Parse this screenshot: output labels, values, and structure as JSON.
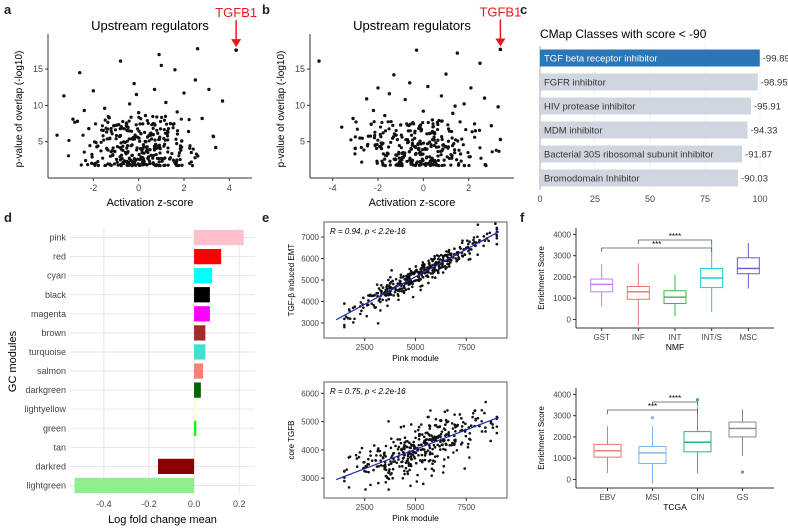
{
  "panel_letters": {
    "a": "a",
    "b": "b",
    "c": "c",
    "d": "d",
    "e": "e",
    "f": "f"
  },
  "colors": {
    "point": "#111111",
    "arrow": "#e81818",
    "bar_highlight": "#2a76b6",
    "bar_default": "#d0d6df",
    "regression": "#1a2aa8",
    "gridline": "#e6e6e6"
  },
  "chart_data": [
    {
      "id": "a",
      "type": "scatter",
      "title": "Upstream regulators",
      "xlabel": "Activation z-score",
      "ylabel": "p-value of overlap (-log10)",
      "xlim": [
        -4,
        5
      ],
      "ylim": [
        0,
        19
      ],
      "xticks": [
        -2,
        0,
        2,
        4
      ],
      "yticks": [
        5,
        10,
        15
      ],
      "annotation": {
        "label": "TGFB1",
        "x": 4.3,
        "y": 17.6
      },
      "points_note": "~450 regulators; points cluster at z between -3 and 3, p 2-8; representative sample below",
      "points": [
        [
          -3.6,
          5.9
        ],
        [
          -3.3,
          11.3
        ],
        [
          -2.9,
          8.1
        ],
        [
          -2.6,
          14.5
        ],
        [
          -2.4,
          9.3
        ],
        [
          -2.2,
          6.8
        ],
        [
          -2.0,
          12.0
        ],
        [
          -1.8,
          4.4
        ],
        [
          -1.5,
          9.6
        ],
        [
          -1.1,
          7.2
        ],
        [
          -0.8,
          16.1
        ],
        [
          -0.6,
          4.9
        ],
        [
          -0.4,
          10.2
        ],
        [
          -0.2,
          13.0
        ],
        [
          0.1,
          6.1
        ],
        [
          0.3,
          8.6
        ],
        [
          0.5,
          3.9
        ],
        [
          0.7,
          12.2
        ],
        [
          1.0,
          15.5
        ],
        [
          1.2,
          10.4
        ],
        [
          1.4,
          7.5
        ],
        [
          1.7,
          9.1
        ],
        [
          2.0,
          11.7
        ],
        [
          2.2,
          6.4
        ],
        [
          2.5,
          13.5
        ],
        [
          2.8,
          8.2
        ],
        [
          3.1,
          12.2
        ],
        [
          3.3,
          5.7
        ],
        [
          3.7,
          10.6
        ],
        [
          1.6,
          14.9
        ],
        [
          0.0,
          9.0
        ],
        [
          -1.3,
          8.3
        ],
        [
          2.6,
          17.8
        ],
        [
          -0.1,
          11.5
        ],
        [
          0.9,
          17.0
        ],
        [
          -2.7,
          7.8
        ],
        [
          3.4,
          4.2
        ],
        [
          1.9,
          5.1
        ]
      ],
      "cluster": {
        "x_center": 0,
        "x_sd": 1.2,
        "y_min": 1.7,
        "y_max": 8.5,
        "n": 320
      }
    },
    {
      "id": "b",
      "type": "scatter",
      "title": "Upstream regulators",
      "xlabel": "Activation z-score",
      "ylabel": "p-value of overlap (-log10)",
      "xlim": [
        -5,
        4
      ],
      "ylim": [
        0,
        19
      ],
      "xticks": [
        -4,
        -2,
        0,
        2
      ],
      "yticks": [
        5,
        10,
        15
      ],
      "annotation": {
        "label": "TGFB1",
        "x": 3.4,
        "y": 17.7
      },
      "points_note": "~400 regulators; representative sample below",
      "points": [
        [
          -4.6,
          16.1
        ],
        [
          -3.6,
          7.0
        ],
        [
          -3.1,
          8.2
        ],
        [
          -2.8,
          5.5
        ],
        [
          -2.5,
          10.9
        ],
        [
          -2.2,
          9.3
        ],
        [
          -2.0,
          12.4
        ],
        [
          -1.7,
          8.6
        ],
        [
          -1.5,
          11.6
        ],
        [
          -1.3,
          14.2
        ],
        [
          -1.0,
          7.3
        ],
        [
          -0.8,
          10.8
        ],
        [
          -0.6,
          13.1
        ],
        [
          -0.3,
          17.6
        ],
        [
          0.0,
          9.2
        ],
        [
          0.2,
          12.6
        ],
        [
          0.5,
          6.1
        ],
        [
          0.8,
          11.3
        ],
        [
          1.0,
          14.3
        ],
        [
          1.3,
          8.9
        ],
        [
          1.5,
          17.2
        ],
        [
          1.8,
          10.2
        ],
        [
          2.1,
          12.4
        ],
        [
          2.3,
          6.5
        ],
        [
          2.5,
          15.8
        ],
        [
          2.7,
          11.0
        ],
        [
          3.0,
          7.2
        ],
        [
          3.3,
          9.8
        ],
        [
          3.4,
          5.3
        ],
        [
          -2.3,
          7.4
        ],
        [
          1.4,
          9.9
        ],
        [
          0.4,
          8.0
        ],
        [
          -0.1,
          6.5
        ],
        [
          -1.2,
          5.9
        ]
      ],
      "cluster": {
        "x_center": -0.2,
        "x_sd": 1.3,
        "y_min": 1.7,
        "y_max": 8.0,
        "n": 290
      }
    },
    {
      "id": "c",
      "type": "bar",
      "orientation": "horizontal",
      "title": "CMap Classes with score < -90",
      "categories": [
        "TGF beta receptor inhibitor",
        "FGFR inhibitor",
        "HIV protease inhibitor",
        "MDM inhibitor",
        "Bacterial 30S ribosomal subunit inhibitor",
        "Bromodomain Inhibitor"
      ],
      "values": [
        -99.89,
        -98.95,
        -95.91,
        -94.33,
        -91.87,
        -90.03
      ],
      "value_labels": [
        "-99.89",
        "-98.95",
        "-95.91",
        "-94.33",
        "-91.87",
        "-90.03"
      ],
      "xlim": [
        0,
        100
      ],
      "xticks": [
        0,
        25,
        50,
        75,
        100
      ],
      "highlight_index": 0
    },
    {
      "id": "d",
      "type": "bar",
      "orientation": "horizontal",
      "xlabel": "Log fold change mean",
      "ylabel": "GC modules",
      "categories": [
        "pink",
        "red",
        "cyan",
        "black",
        "magenta",
        "brown",
        "turquoise",
        "salmon",
        "darkgreen",
        "lightyellow",
        "green",
        "tan",
        "darkred",
        "lightgreen"
      ],
      "values": [
        0.22,
        0.12,
        0.08,
        0.07,
        0.07,
        0.05,
        0.05,
        0.04,
        0.03,
        0.02,
        0.01,
        0.0,
        -0.16,
        -0.53
      ],
      "bar_colors": [
        "#ffc0cb",
        "#ff0000",
        "#00ffff",
        "#000000",
        "#ff00ff",
        "#a52a2a",
        "#40e0d0",
        "#fa8072",
        "#006400",
        "#ffffe0",
        "#00ff00",
        "#d2b48c",
        "#8b0000",
        "#90ee90"
      ],
      "xlim": [
        -0.55,
        0.27
      ],
      "xticks": [
        -0.4,
        -0.2,
        0.0,
        0.2
      ],
      "xtick_labels": [
        "-0.4",
        "-0.2",
        "0.0",
        "0.2"
      ]
    },
    {
      "id": "e1",
      "type": "scatter",
      "xlabel": "Pink module",
      "ylabel": "TGF-β induced EMT",
      "stat": "R = 0.94, p < 2.2e-16",
      "xlim": [
        500,
        9500
      ],
      "ylim": [
        2300,
        7700
      ],
      "xticks": [
        2500,
        5000,
        7500
      ],
      "yticks": [
        3000,
        4000,
        5000,
        6000,
        7000
      ],
      "regression": {
        "x0": 1100,
        "y0": 3150,
        "x1": 9100,
        "y1": 7250
      },
      "cluster": {
        "n": 380,
        "x_min": 1500,
        "x_max": 9000,
        "noise": 260
      }
    },
    {
      "id": "e2",
      "type": "scatter",
      "xlabel": "Pink module",
      "ylabel": "core TGFB",
      "stat": "R = 0.75, p < 2.2e-16",
      "xlim": [
        500,
        9500
      ],
      "ylim": [
        2300,
        6400
      ],
      "xticks": [
        2500,
        5000,
        7500
      ],
      "yticks": [
        3000,
        4000,
        5000,
        6000
      ],
      "regression": {
        "x0": 1100,
        "y0": 2950,
        "x1": 9100,
        "y1": 5150
      },
      "cluster": {
        "n": 380,
        "x_min": 1500,
        "x_max": 9000,
        "noise": 420
      }
    },
    {
      "id": "f1",
      "type": "box",
      "xlabel": "NMF",
      "ylabel": "Enrichment Score",
      "categories": [
        "GST",
        "INF",
        "INT",
        "INT/S",
        "MSC"
      ],
      "box_colors": [
        "#c77cff",
        "#e8766d",
        "#2fbd3c",
        "#1ec9d4",
        "#6a5acd"
      ],
      "boxes": [
        {
          "min": 600,
          "q1": 1300,
          "median": 1650,
          "q3": 1900,
          "max": 2600,
          "outliers": []
        },
        {
          "min": -300,
          "q1": 950,
          "median": 1300,
          "q3": 1550,
          "max": 2650,
          "outliers": []
        },
        {
          "min": 150,
          "q1": 750,
          "median": 1050,
          "q3": 1350,
          "max": 2100,
          "outliers": []
        },
        {
          "min": 350,
          "q1": 1500,
          "median": 1950,
          "q3": 2400,
          "max": 3600,
          "outliers": []
        },
        {
          "min": 1450,
          "q1": 2150,
          "median": 2400,
          "q3": 2900,
          "max": 3600,
          "outliers": []
        }
      ],
      "ylim": [
        -400,
        4300
      ],
      "yticks": [
        0,
        1000,
        2000,
        3000,
        4000
      ],
      "significance": [
        {
          "from": 0,
          "to": 3,
          "label": "***"
        },
        {
          "from": 1,
          "to": 3,
          "label": "****"
        }
      ]
    },
    {
      "id": "f2",
      "type": "box",
      "xlabel": "TCGA",
      "ylabel": "Enrichment Score",
      "categories": [
        "EBV",
        "MSI",
        "CIN",
        "GS"
      ],
      "box_colors": [
        "#e8766d",
        "#7fb3e8",
        "#2ab08a",
        "#888888"
      ],
      "boxes": [
        {
          "min": 300,
          "q1": 1050,
          "median": 1350,
          "q3": 1650,
          "max": 2500,
          "outliers": []
        },
        {
          "min": -200,
          "q1": 750,
          "median": 1250,
          "q3": 1550,
          "max": 2500,
          "outliers": [
            2900
          ]
        },
        {
          "min": 300,
          "q1": 1300,
          "median": 1750,
          "q3": 2250,
          "max": 3400,
          "outliers": [
            3750
          ]
        },
        {
          "min": 1100,
          "q1": 2000,
          "median": 2400,
          "q3": 2700,
          "max": 3300,
          "outliers": [
            350
          ]
        }
      ],
      "ylim": [
        -400,
        4300
      ],
      "yticks": [
        0,
        1000,
        2000,
        3000,
        4000
      ],
      "significance": [
        {
          "from": 0,
          "to": 2,
          "label": "***"
        },
        {
          "from": 1,
          "to": 2,
          "label": "****"
        }
      ]
    }
  ]
}
